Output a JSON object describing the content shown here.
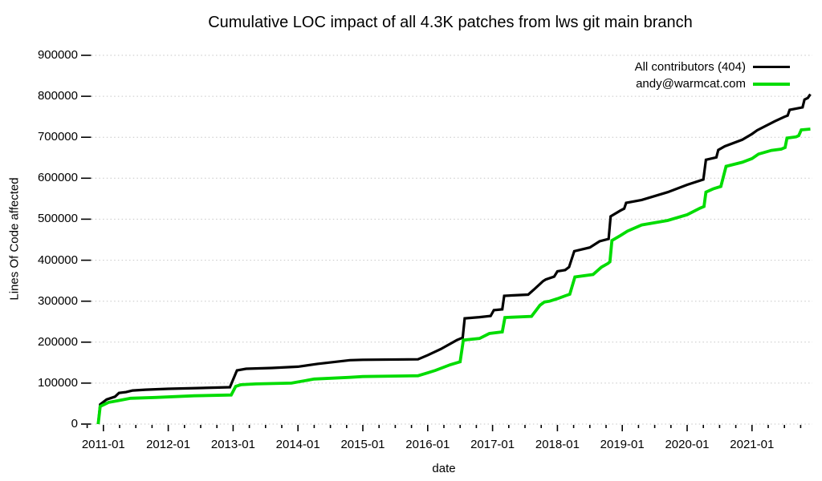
{
  "title": "Cumulative LOC impact of all 4.3K patches from lws git main branch",
  "colors": {
    "background": "#ffffff",
    "grid": "#c6c6c6",
    "tick": "#000000",
    "text": "#000000",
    "series_all": "#000000",
    "series_andy": "#00dc00"
  },
  "chart_data": {
    "type": "line",
    "title": "Cumulative LOC impact of all 4.3K patches from lws git main branch",
    "xlabel": "date",
    "ylabel": "Lines Of Code affected",
    "legend_position": "top-right",
    "grid": "dotted horizontal gridlines at every y tick",
    "x_axis": {
      "tick_labels": [
        "2011-01",
        "2012-01",
        "2013-01",
        "2014-01",
        "2015-01",
        "2016-01",
        "2017-01",
        "2018-01",
        "2019-01",
        "2020-01",
        "2021-01"
      ],
      "tick_years": [
        2011,
        2012,
        2013,
        2014,
        2015,
        2016,
        2017,
        2018,
        2019,
        2020,
        2021
      ],
      "minor_tick_interval_years": 0.25,
      "range_years": [
        2010.78,
        2021.97
      ]
    },
    "y_axis": {
      "ticks": [
        0,
        100000,
        200000,
        300000,
        400000,
        500000,
        600000,
        700000,
        800000,
        900000
      ],
      "range": [
        0,
        900000
      ]
    },
    "series": [
      {
        "name": "All contributors (404)",
        "color": "#000000",
        "line_width": 3.2,
        "points": [
          [
            2010.92,
            0
          ],
          [
            2010.95,
            48000
          ],
          [
            2011.05,
            60000
          ],
          [
            2011.18,
            67000
          ],
          [
            2011.24,
            76000
          ],
          [
            2011.35,
            78000
          ],
          [
            2011.45,
            82000
          ],
          [
            2011.65,
            84000
          ],
          [
            2012.0,
            86000
          ],
          [
            2012.5,
            88000
          ],
          [
            2012.95,
            90000
          ],
          [
            2013.03,
            120000
          ],
          [
            2013.06,
            131000
          ],
          [
            2013.2,
            135000
          ],
          [
            2013.6,
            137000
          ],
          [
            2014.0,
            140000
          ],
          [
            2014.3,
            147000
          ],
          [
            2014.8,
            156000
          ],
          [
            2015.0,
            157000
          ],
          [
            2015.85,
            158000
          ],
          [
            2016.0,
            168000
          ],
          [
            2016.2,
            183000
          ],
          [
            2016.45,
            205000
          ],
          [
            2016.54,
            211000
          ],
          [
            2016.57,
            258000
          ],
          [
            2016.8,
            261000
          ],
          [
            2016.97,
            264000
          ],
          [
            2017.02,
            278000
          ],
          [
            2017.15,
            280000
          ],
          [
            2017.18,
            313000
          ],
          [
            2017.55,
            316000
          ],
          [
            2017.65,
            330000
          ],
          [
            2017.78,
            349000
          ],
          [
            2017.82,
            353000
          ],
          [
            2017.95,
            360000
          ],
          [
            2018.0,
            373000
          ],
          [
            2018.12,
            376000
          ],
          [
            2018.18,
            383000
          ],
          [
            2018.26,
            422000
          ],
          [
            2018.5,
            431000
          ],
          [
            2018.65,
            446000
          ],
          [
            2018.79,
            452000
          ],
          [
            2018.82,
            507000
          ],
          [
            2018.97,
            521000
          ],
          [
            2019.03,
            526000
          ],
          [
            2019.06,
            540000
          ],
          [
            2019.3,
            547000
          ],
          [
            2019.7,
            566000
          ],
          [
            2020.0,
            584000
          ],
          [
            2020.25,
            597000
          ],
          [
            2020.29,
            645000
          ],
          [
            2020.45,
            651000
          ],
          [
            2020.48,
            669000
          ],
          [
            2020.58,
            678000
          ],
          [
            2020.85,
            694000
          ],
          [
            2021.0,
            708000
          ],
          [
            2021.08,
            717000
          ],
          [
            2021.35,
            739000
          ],
          [
            2021.5,
            750000
          ],
          [
            2021.55,
            753000
          ],
          [
            2021.58,
            767000
          ],
          [
            2021.78,
            773000
          ],
          [
            2021.81,
            792000
          ],
          [
            2021.86,
            796000
          ],
          [
            2021.9,
            805000
          ]
        ]
      },
      {
        "name": "andy@warmcat.com",
        "color": "#00dc00",
        "line_width": 3.8,
        "points": [
          [
            2010.92,
            0
          ],
          [
            2010.95,
            43000
          ],
          [
            2011.0,
            47000
          ],
          [
            2011.08,
            53000
          ],
          [
            2011.22,
            57000
          ],
          [
            2011.42,
            63000
          ],
          [
            2011.8,
            65000
          ],
          [
            2012.4,
            69000
          ],
          [
            2012.97,
            71000
          ],
          [
            2013.04,
            92000
          ],
          [
            2013.12,
            96000
          ],
          [
            2013.35,
            98000
          ],
          [
            2013.9,
            100000
          ],
          [
            2014.25,
            110000
          ],
          [
            2014.8,
            114000
          ],
          [
            2015.0,
            116000
          ],
          [
            2015.85,
            118000
          ],
          [
            2016.0,
            125000
          ],
          [
            2016.12,
            131000
          ],
          [
            2016.35,
            145000
          ],
          [
            2016.5,
            152000
          ],
          [
            2016.55,
            205000
          ],
          [
            2016.8,
            209000
          ],
          [
            2016.95,
            221000
          ],
          [
            2017.15,
            225000
          ],
          [
            2017.19,
            260000
          ],
          [
            2017.6,
            263000
          ],
          [
            2017.73,
            290000
          ],
          [
            2017.8,
            298000
          ],
          [
            2017.88,
            300000
          ],
          [
            2018.0,
            306000
          ],
          [
            2018.12,
            313000
          ],
          [
            2018.19,
            317000
          ],
          [
            2018.27,
            359000
          ],
          [
            2018.55,
            365000
          ],
          [
            2018.68,
            383000
          ],
          [
            2018.78,
            392000
          ],
          [
            2018.81,
            396000
          ],
          [
            2018.84,
            448000
          ],
          [
            2018.97,
            460000
          ],
          [
            2019.08,
            471000
          ],
          [
            2019.3,
            486000
          ],
          [
            2019.7,
            497000
          ],
          [
            2020.0,
            511000
          ],
          [
            2020.2,
            527000
          ],
          [
            2020.26,
            531000
          ],
          [
            2020.29,
            566000
          ],
          [
            2020.4,
            574000
          ],
          [
            2020.52,
            580000
          ],
          [
            2020.6,
            629000
          ],
          [
            2020.85,
            639000
          ],
          [
            2021.0,
            648000
          ],
          [
            2021.1,
            659000
          ],
          [
            2021.3,
            668000
          ],
          [
            2021.45,
            671000
          ],
          [
            2021.51,
            675000
          ],
          [
            2021.54,
            698000
          ],
          [
            2021.68,
            701000
          ],
          [
            2021.72,
            704000
          ],
          [
            2021.76,
            718000
          ],
          [
            2021.9,
            720000
          ]
        ]
      }
    ]
  }
}
